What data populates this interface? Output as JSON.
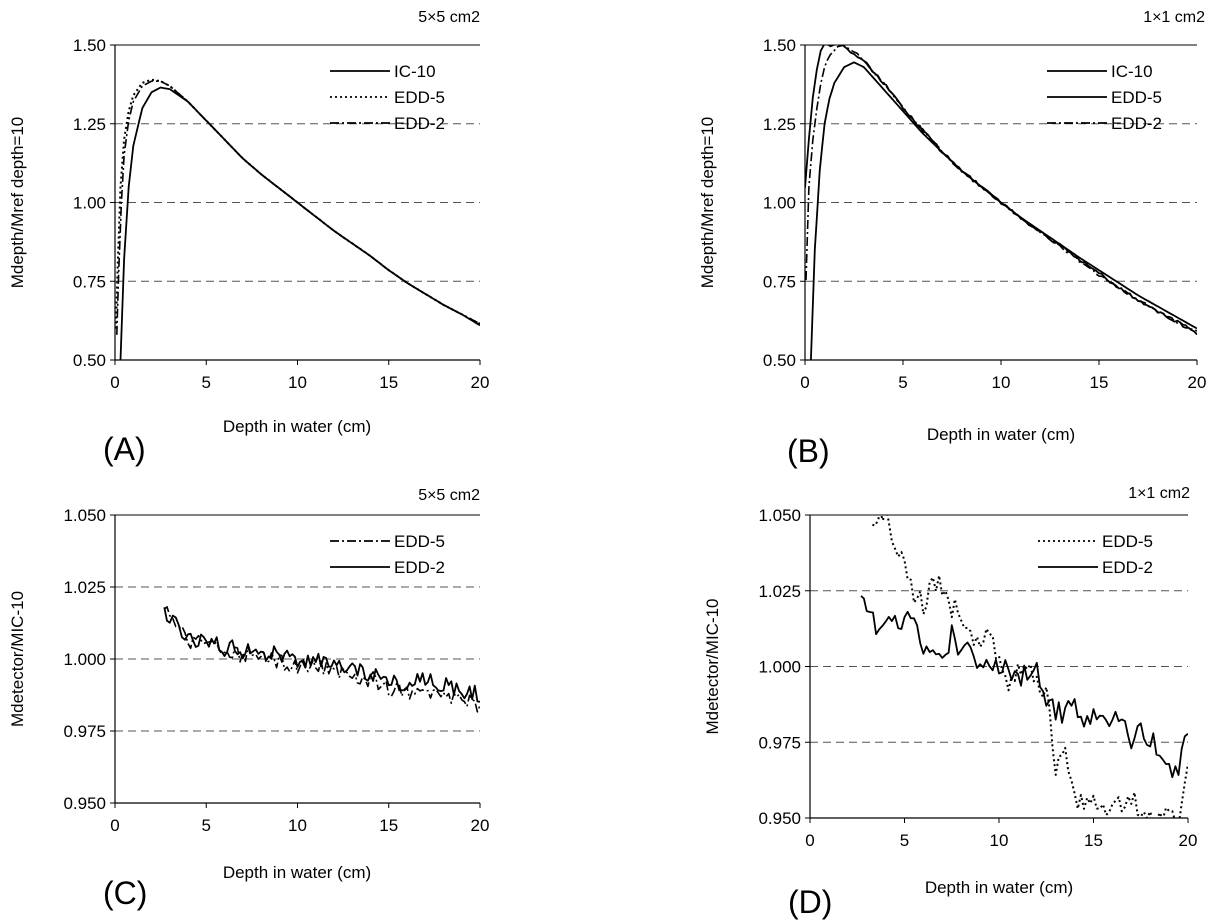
{
  "chart_data": [
    {
      "panel_label": "(A)",
      "type": "line",
      "field_size": "5×5 cm2",
      "xlabel": "Depth in water (cm)",
      "ylabel": "Mdepth/Mref depth=10",
      "xlim": [
        0,
        20
      ],
      "ylim": [
        0.5,
        1.5
      ],
      "xticks": [
        0,
        5,
        10,
        15,
        20
      ],
      "yticks": [
        0.5,
        0.75,
        1.0,
        1.25,
        1.5
      ],
      "ytick_labels": [
        "0.50",
        "0.75",
        "1.00",
        "1.25",
        "1.50"
      ],
      "y_dashed_gridlines": [
        0.75,
        1.0,
        1.25
      ],
      "legend_position": "top-right",
      "legend": [
        "IC-10",
        "EDD-5",
        "EDD-2"
      ],
      "series": [
        {
          "name": "IC-10",
          "style": "solid",
          "noise": 0,
          "x": [
            0.3,
            0.5,
            0.75,
            1.0,
            1.5,
            2.0,
            2.5,
            3.0,
            4.0,
            5.0,
            6.0,
            7.0,
            8.0,
            9.0,
            10.0,
            11.0,
            12.0,
            13.0,
            14.0,
            15.0,
            16.0,
            17.0,
            18.0,
            19.0,
            20.0
          ],
          "y": [
            0.5,
            0.82,
            1.05,
            1.18,
            1.3,
            1.35,
            1.365,
            1.36,
            1.32,
            1.26,
            1.2,
            1.14,
            1.09,
            1.045,
            1.0,
            0.955,
            0.91,
            0.87,
            0.83,
            0.785,
            0.745,
            0.71,
            0.675,
            0.645,
            0.61
          ]
        },
        {
          "name": "EDD-5",
          "style": "dotted",
          "noise": 0,
          "x": [
            0.05,
            0.15,
            0.3,
            0.5,
            0.75,
            1.0,
            1.5,
            2.0,
            2.5,
            3.0,
            4.0,
            5.0,
            6.0,
            7.0,
            8.0,
            9.0,
            10.0,
            11.0,
            12.0,
            13.0,
            14.0,
            15.0,
            16.0,
            17.0,
            18.0,
            19.0,
            20.0
          ],
          "y": [
            0.6,
            0.8,
            1.05,
            1.2,
            1.29,
            1.34,
            1.38,
            1.39,
            1.385,
            1.37,
            1.32,
            1.26,
            1.2,
            1.14,
            1.09,
            1.045,
            1.0,
            0.955,
            0.91,
            0.87,
            0.83,
            0.785,
            0.745,
            0.71,
            0.675,
            0.645,
            0.615
          ]
        },
        {
          "name": "EDD-2",
          "style": "dashdot",
          "noise": 0,
          "x": [
            0.1,
            0.2,
            0.35,
            0.5,
            0.75,
            1.0,
            1.5,
            2.0,
            2.5,
            3.0,
            4.0,
            5.0,
            6.0,
            7.0,
            8.0,
            9.0,
            10.0,
            11.0,
            12.0,
            13.0,
            14.0,
            15.0,
            16.0,
            17.0,
            18.0,
            19.0,
            20.0
          ],
          "y": [
            0.58,
            0.78,
            1.0,
            1.15,
            1.26,
            1.32,
            1.37,
            1.385,
            1.385,
            1.37,
            1.32,
            1.26,
            1.2,
            1.14,
            1.09,
            1.045,
            1.0,
            0.955,
            0.91,
            0.87,
            0.83,
            0.785,
            0.745,
            0.71,
            0.675,
            0.645,
            0.615
          ]
        }
      ]
    },
    {
      "panel_label": "(B)",
      "type": "line",
      "field_size": "1×1 cm2",
      "xlabel": "Depth in water (cm)",
      "ylabel": "Mdepth/Mref depth=10",
      "xlim": [
        0,
        20
      ],
      "ylim": [
        0.5,
        1.5
      ],
      "xticks": [
        0,
        5,
        10,
        15,
        20
      ],
      "yticks": [
        0.5,
        0.75,
        1.0,
        1.25,
        1.5
      ],
      "ytick_labels": [
        "0.50",
        "0.75",
        "1.00",
        "1.25",
        "1.50"
      ],
      "y_dashed_gridlines": [
        0.75,
        1.0,
        1.25
      ],
      "legend_position": "top-right",
      "legend": [
        "IC-10",
        "EDD-5",
        "EDD-2"
      ],
      "series": [
        {
          "name": "IC-10",
          "style": "solid",
          "noise": 0,
          "x": [
            0.3,
            0.5,
            0.75,
            1.0,
            1.25,
            1.5,
            2.0,
            2.5,
            3.0,
            4.0,
            5.0,
            6.0,
            7.0,
            8.0,
            9.0,
            10.0,
            11.0,
            12.0,
            13.0,
            14.0,
            15.0,
            16.0,
            17.0,
            18.0,
            19.0,
            20.0
          ],
          "y": [
            0.5,
            0.85,
            1.1,
            1.25,
            1.33,
            1.38,
            1.43,
            1.445,
            1.43,
            1.36,
            1.29,
            1.22,
            1.16,
            1.1,
            1.05,
            1.0,
            0.953,
            0.91,
            0.868,
            0.825,
            0.785,
            0.745,
            0.705,
            0.67,
            0.635,
            0.6
          ]
        },
        {
          "name": "EDD-5",
          "style": "solid",
          "noise": 0.005,
          "x": [
            0.0,
            0.2,
            0.4,
            0.6,
            0.8,
            1.0,
            1.3,
            1.6,
            2.0,
            2.5,
            3.0,
            4.0,
            5.0,
            6.0,
            7.0,
            8.0,
            9.0,
            10.0,
            11.0,
            12.0,
            13.0,
            14.0,
            15.0,
            16.0,
            17.0,
            18.0,
            19.0,
            20.0
          ],
          "y": [
            1.05,
            1.2,
            1.33,
            1.42,
            1.48,
            1.5,
            1.5,
            1.5,
            1.5,
            1.47,
            1.45,
            1.38,
            1.3,
            1.23,
            1.16,
            1.1,
            1.05,
            1.0,
            0.952,
            0.905,
            0.865,
            0.82,
            0.775,
            0.73,
            0.69,
            0.655,
            0.62,
            0.585
          ]
        },
        {
          "name": "EDD-2",
          "style": "dashdot",
          "noise": 0.004,
          "x": [
            0.05,
            0.2,
            0.4,
            0.6,
            0.8,
            1.0,
            1.3,
            1.6,
            2.0,
            2.5,
            3.0,
            4.0,
            5.0,
            6.0,
            7.0,
            8.0,
            9.0,
            10.0,
            11.0,
            12.0,
            13.0,
            14.0,
            15.0,
            16.0,
            17.0,
            18.0,
            19.0,
            20.0
          ],
          "y": [
            0.75,
            1.05,
            1.2,
            1.3,
            1.38,
            1.43,
            1.47,
            1.49,
            1.5,
            1.48,
            1.45,
            1.38,
            1.3,
            1.23,
            1.16,
            1.1,
            1.05,
            1.0,
            0.95,
            0.905,
            0.86,
            0.815,
            0.77,
            0.73,
            0.69,
            0.655,
            0.62,
            0.59
          ]
        }
      ]
    },
    {
      "panel_label": "(C)",
      "type": "line",
      "field_size": "5×5 cm2",
      "xlabel": "Depth in water (cm)",
      "ylabel": "Mdetector/MIC-10",
      "xlim": [
        0,
        20
      ],
      "ylim": [
        0.95,
        1.05
      ],
      "xticks": [
        0,
        5,
        10,
        15,
        20
      ],
      "yticks": [
        0.95,
        0.975,
        1.0,
        1.025,
        1.05
      ],
      "ytick_labels": [
        "0.950",
        "0.975",
        "1.000",
        "1.025",
        "1.050"
      ],
      "y_dashed_gridlines": [
        0.975,
        1.0,
        1.025
      ],
      "legend_position": "top-right",
      "legend": [
        "EDD-5",
        "EDD-2"
      ],
      "series": [
        {
          "name": "EDD-5",
          "style": "dashdot",
          "noise": 0.003,
          "x": [
            2.7,
            3.0,
            3.5,
            4.0,
            5.0,
            6.0,
            7.0,
            8.0,
            9.0,
            10.0,
            11.0,
            12.0,
            13.0,
            14.0,
            15.0,
            16.0,
            17.0,
            18.0,
            19.0,
            20.0
          ],
          "y": [
            1.017,
            1.015,
            1.01,
            1.007,
            1.005,
            1.002,
            1.002,
            1.001,
            0.999,
            0.998,
            0.997,
            0.996,
            0.995,
            0.993,
            0.99,
            0.988,
            0.987,
            0.987,
            0.985,
            0.984
          ]
        },
        {
          "name": "EDD-2",
          "style": "solid",
          "noise": 0.003,
          "x": [
            2.7,
            3.0,
            3.5,
            4.0,
            5.0,
            6.0,
            7.0,
            8.0,
            9.0,
            10.0,
            11.0,
            12.0,
            13.0,
            14.0,
            15.0,
            16.0,
            17.0,
            18.0,
            19.0,
            20.0
          ],
          "y": [
            1.017,
            1.015,
            1.01,
            1.008,
            1.006,
            1.004,
            1.003,
            1.003,
            1.001,
            1.0,
            0.999,
            0.998,
            0.997,
            0.995,
            0.992,
            0.991,
            0.993,
            0.991,
            0.989,
            0.988
          ]
        }
      ]
    },
    {
      "panel_label": "(D)",
      "type": "line",
      "field_size": "1×1 cm2",
      "xlabel": "Depth in water (cm)",
      "ylabel": "Mdetector/MIC-10",
      "xlim": [
        0,
        20
      ],
      "ylim": [
        0.95,
        1.05
      ],
      "xticks": [
        0,
        5,
        10,
        15,
        20
      ],
      "yticks": [
        0.95,
        0.975,
        1.0,
        1.025,
        1.05
      ],
      "ytick_labels": [
        "0.950",
        "0.975",
        "1.000",
        "1.025",
        "1.050"
      ],
      "y_dashed_gridlines": [
        0.975,
        1.0,
        1.025
      ],
      "legend_position": "top-right",
      "legend": [
        "EDD-5",
        "EDD-2"
      ],
      "series": [
        {
          "name": "EDD-5",
          "style": "dotted",
          "noise": 0.004,
          "x": [
            3.3,
            4.0,
            4.5,
            5.0,
            5.5,
            6.0,
            6.5,
            7.0,
            7.5,
            8.0,
            8.5,
            9.0,
            9.5,
            10.0,
            10.5,
            11.0,
            11.5,
            12.0,
            12.5,
            13.0,
            13.5,
            14.0,
            14.5,
            15.0,
            15.5,
            16.0,
            16.5,
            17.0,
            17.5,
            18.0,
            18.5,
            19.0,
            19.5,
            20.0
          ],
          "y": [
            1.045,
            1.05,
            1.04,
            1.032,
            1.025,
            1.02,
            1.026,
            1.027,
            1.02,
            1.015,
            1.01,
            1.008,
            1.012,
            1.0,
            0.995,
            1.0,
            0.998,
            0.997,
            0.992,
            0.965,
            0.975,
            0.955,
            0.953,
            0.957,
            0.952,
            0.958,
            0.955,
            0.958,
            0.952,
            0.95,
            0.95,
            0.952,
            0.95,
            0.965
          ]
        },
        {
          "name": "EDD-2",
          "style": "solid",
          "noise": 0.004,
          "x": [
            2.7,
            3.0,
            3.5,
            4.0,
            4.5,
            5.0,
            5.5,
            6.0,
            6.5,
            7.0,
            7.5,
            8.0,
            8.5,
            9.0,
            9.5,
            10.0,
            10.5,
            11.0,
            11.5,
            12.0,
            12.5,
            13.0,
            13.5,
            14.0,
            14.5,
            15.0,
            15.5,
            16.0,
            16.5,
            17.0,
            17.5,
            18.0,
            18.5,
            19.0,
            19.5,
            20.0
          ],
          "y": [
            1.025,
            1.022,
            1.01,
            1.015,
            1.013,
            1.018,
            1.012,
            1.008,
            1.005,
            1.003,
            1.01,
            1.005,
            1.004,
            1.003,
            1.0,
            1.0,
            0.998,
            0.995,
            0.997,
            1.0,
            0.99,
            0.985,
            0.985,
            0.988,
            0.983,
            0.985,
            0.987,
            0.982,
            0.982,
            0.975,
            0.978,
            0.975,
            0.972,
            0.966,
            0.968,
            0.98
          ]
        }
      ]
    }
  ]
}
